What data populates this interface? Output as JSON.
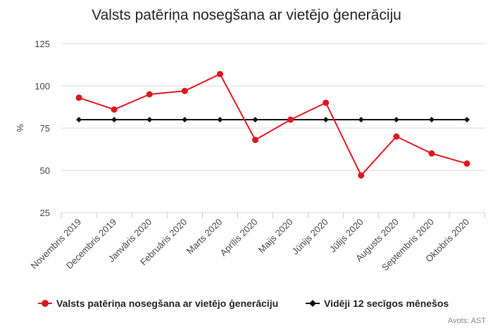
{
  "chart_data": {
    "type": "line",
    "title": "Valsts patēriņa nosegšana ar vietējo ģenerāciju",
    "ylabel": "%",
    "xlabel": "",
    "ylim": [
      25,
      125
    ],
    "yticks": [
      25,
      50,
      75,
      100,
      125
    ],
    "grid": true,
    "legend_position": "bottom",
    "categories": [
      "Novembris 2019",
      "Decembris 2019",
      "Janvāris 2020",
      "Februāris 2020",
      "Marts 2020",
      "Aprīlis 2020",
      "Maijs 2020",
      "Jūnijs 2020",
      "Jūlijs 2020",
      "Augusts 2020",
      "Septembris 2020",
      "Oktobris 2020"
    ],
    "series": [
      {
        "name": "Valsts patēriņa nosegšana ar vietējo ģenerāciju",
        "color": "#e0161e",
        "marker": "circle",
        "values": [
          93,
          86,
          95,
          97,
          107,
          68,
          80,
          90,
          47,
          70,
          60,
          54
        ]
      },
      {
        "name": "Vidēji 12 secīgos mēnešos",
        "color": "#111111",
        "marker": "diamond",
        "values": [
          80,
          80,
          80,
          80,
          80,
          80,
          80,
          80,
          80,
          80,
          80,
          80
        ]
      }
    ],
    "credit": "Avots: AST"
  }
}
